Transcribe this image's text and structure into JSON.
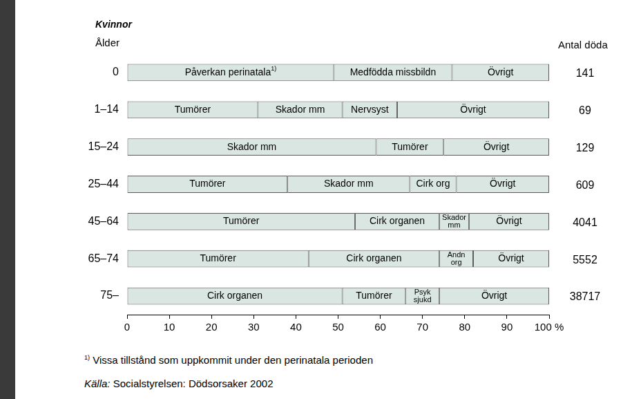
{
  "chart_data": {
    "type": "bar",
    "orientation": "horizontal",
    "stacked": true,
    "grid": false,
    "title": "Kvinnor",
    "ylabel": "Ålder",
    "right_label": "Antal döda",
    "categories": [
      "0",
      "1–14",
      "15–24",
      "25–44",
      "45–64",
      "65–74",
      "75–"
    ],
    "segments": [
      [
        {
          "label": "Påverkan perinatala",
          "note": "1)",
          "value": 49
        },
        {
          "label": "Medfödda missbildn",
          "value": 28
        },
        {
          "label": "Övrigt",
          "value": 23
        }
      ],
      [
        {
          "label": "Tumörer",
          "value": 31
        },
        {
          "label": "Skador mm",
          "value": 20
        },
        {
          "label": "Nervsyst",
          "value": 13
        },
        {
          "label": "Övrigt",
          "value": 36
        }
      ],
      [
        {
          "label": "Skador mm",
          "value": 59
        },
        {
          "label": "Tumörer",
          "value": 16
        },
        {
          "label": "Övrigt",
          "value": 25
        }
      ],
      [
        {
          "label": "Tumörer",
          "value": 38
        },
        {
          "label": "Skador mm",
          "value": 29
        },
        {
          "label": "Cirk org",
          "value": 11
        },
        {
          "label": "Övrigt",
          "value": 22
        }
      ],
      [
        {
          "label": "Tumörer",
          "value": 54
        },
        {
          "label": "Cirk organen",
          "value": 20
        },
        {
          "label": "Skador mm",
          "value": 7
        },
        {
          "label": "Övrigt",
          "value": 19
        }
      ],
      [
        {
          "label": "Tumörer",
          "value": 43
        },
        {
          "label": "Cirk organen",
          "value": 31
        },
        {
          "label": "Andn org",
          "value": 8
        },
        {
          "label": "Övrigt",
          "value": 18
        }
      ],
      [
        {
          "label": "Cirk organen",
          "value": 51
        },
        {
          "label": "Tumörer",
          "value": 15
        },
        {
          "label": "Psyk sjukd",
          "value": 8
        },
        {
          "label": "Övrigt",
          "value": 26
        }
      ]
    ],
    "deaths": [
      141,
      69,
      129,
      609,
      4041,
      5552,
      38717
    ],
    "color": "#dae6e1",
    "xlim": [
      0,
      100
    ],
    "xticks": [
      0,
      10,
      20,
      30,
      40,
      50,
      60,
      70,
      80,
      90,
      {
        "value": 100,
        "label": "100 %"
      }
    ],
    "footnote": {
      "mark": "1)",
      "text": "Vissa tillstånd som uppkommit under den perinatala perioden"
    },
    "source": {
      "label": "Källa:",
      "text": "Socialstyrelsen: Dödsorsaker 2002"
    }
  }
}
